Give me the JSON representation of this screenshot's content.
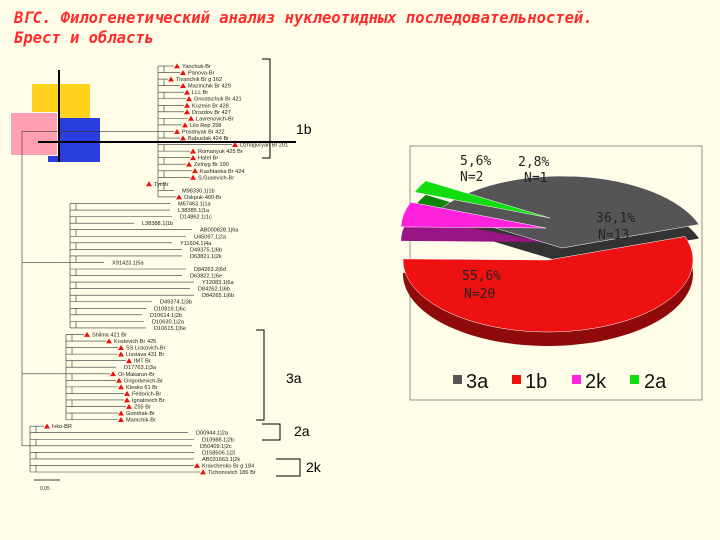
{
  "title": {
    "line1": "ВГС. Филогенетический анализ нуклеотидных последовательностей.",
    "line2": "Брест и область"
  },
  "colors": {
    "title": "#ff2b2b",
    "background": "#fffde8",
    "3a": "#555555",
    "1b": "#ee1111",
    "2k": "#ff22dd",
    "2a": "#11dd11",
    "deco_yellow": "#ffd21e",
    "deco_blue": "#2a3ee0",
    "deco_pink": "#ff9fb0"
  },
  "tree": {
    "clade_labels": {
      "1b": "1b",
      "3a": "3a",
      "2a": "2a",
      "2k": "2k"
    },
    "scale_label": "0.05",
    "leaves": [
      "Yanchuk-Br",
      "Panova-Br",
      "Tivanchik Br g 162",
      "Mazinchik Br 429",
      "LLL Br",
      "Gnostschuk Br 421",
      "Kuzmin Br 428",
      "Drozdov Br 427",
      "Lavrenovich-Br",
      "Lilo Rep 258",
      "Posdnyak Br 422",
      "Babuslak 424 Br",
      "Dzhaguryan Br 201",
      "Romanyuk 425 Br",
      "Hatel Br",
      "Zelnyg Br 190",
      "Kashtanka Br 424",
      "S.Gusevich-Br",
      "Tyr.Br",
      "M98330.1|1b",
      "Oskpuk-400-Br",
      "M67463.1|1a",
      "L38385.1|1a",
      "D14862.1|1c",
      "L38388.1|1b",
      "AB000828.1|6a",
      "U45097.1|2a",
      "Y11604.1|4a",
      "D49375.1|6b",
      "D63821.1|2k",
      "X91423.1|5a",
      "D84263.2|6d",
      "D63822.1|6e",
      "Y12083.1|6a",
      "D84262.1|6b",
      "D84265.1|6b",
      "D49374.1|3b",
      "D10819.1|6c",
      "D10614.1|2b",
      "D10630.1|2a",
      "D10615.1|6e",
      "Shilina 421 Br",
      "Kostevich Br 425",
      "SS Lickovich-Br",
      "Lissiava 431 Br",
      "IMT Br",
      "D17763.1|3a",
      "Ol-Makarun-Br",
      "Grigorkevich-Br",
      "Klesko 61 Br",
      "Fedorich-Br",
      "Ignatovich Br",
      "Z55 Br",
      "Gondrak-Br",
      "Mamchik-Br",
      "Ivko-BR",
      "D00944.1|2a",
      "D10988.1|2b",
      "D50409.1|2c",
      "D158506.1|2i",
      "AB031663.1|2k",
      "Kravchenko Br g 184",
      "Tichonovich 186 Br"
    ]
  },
  "chart_data": {
    "type": "pie",
    "legend_position": "bottom",
    "series": [
      {
        "name": "3a",
        "value": 36.1,
        "count": 13,
        "label": "36,1%",
        "count_label": "N=13",
        "color": "#555555"
      },
      {
        "name": "1b",
        "value": 55.6,
        "count": 20,
        "label": "55,6%",
        "count_label": "N=20",
        "color": "#ee1111"
      },
      {
        "name": "2k",
        "value": 5.6,
        "count": 2,
        "label": "5,6%",
        "count_label": "N=2",
        "color": "#ff22dd"
      },
      {
        "name": "2a",
        "value": 2.8,
        "count": 1,
        "label": "2,8%",
        "count_label": "N=1",
        "color": "#11dd11"
      }
    ]
  }
}
